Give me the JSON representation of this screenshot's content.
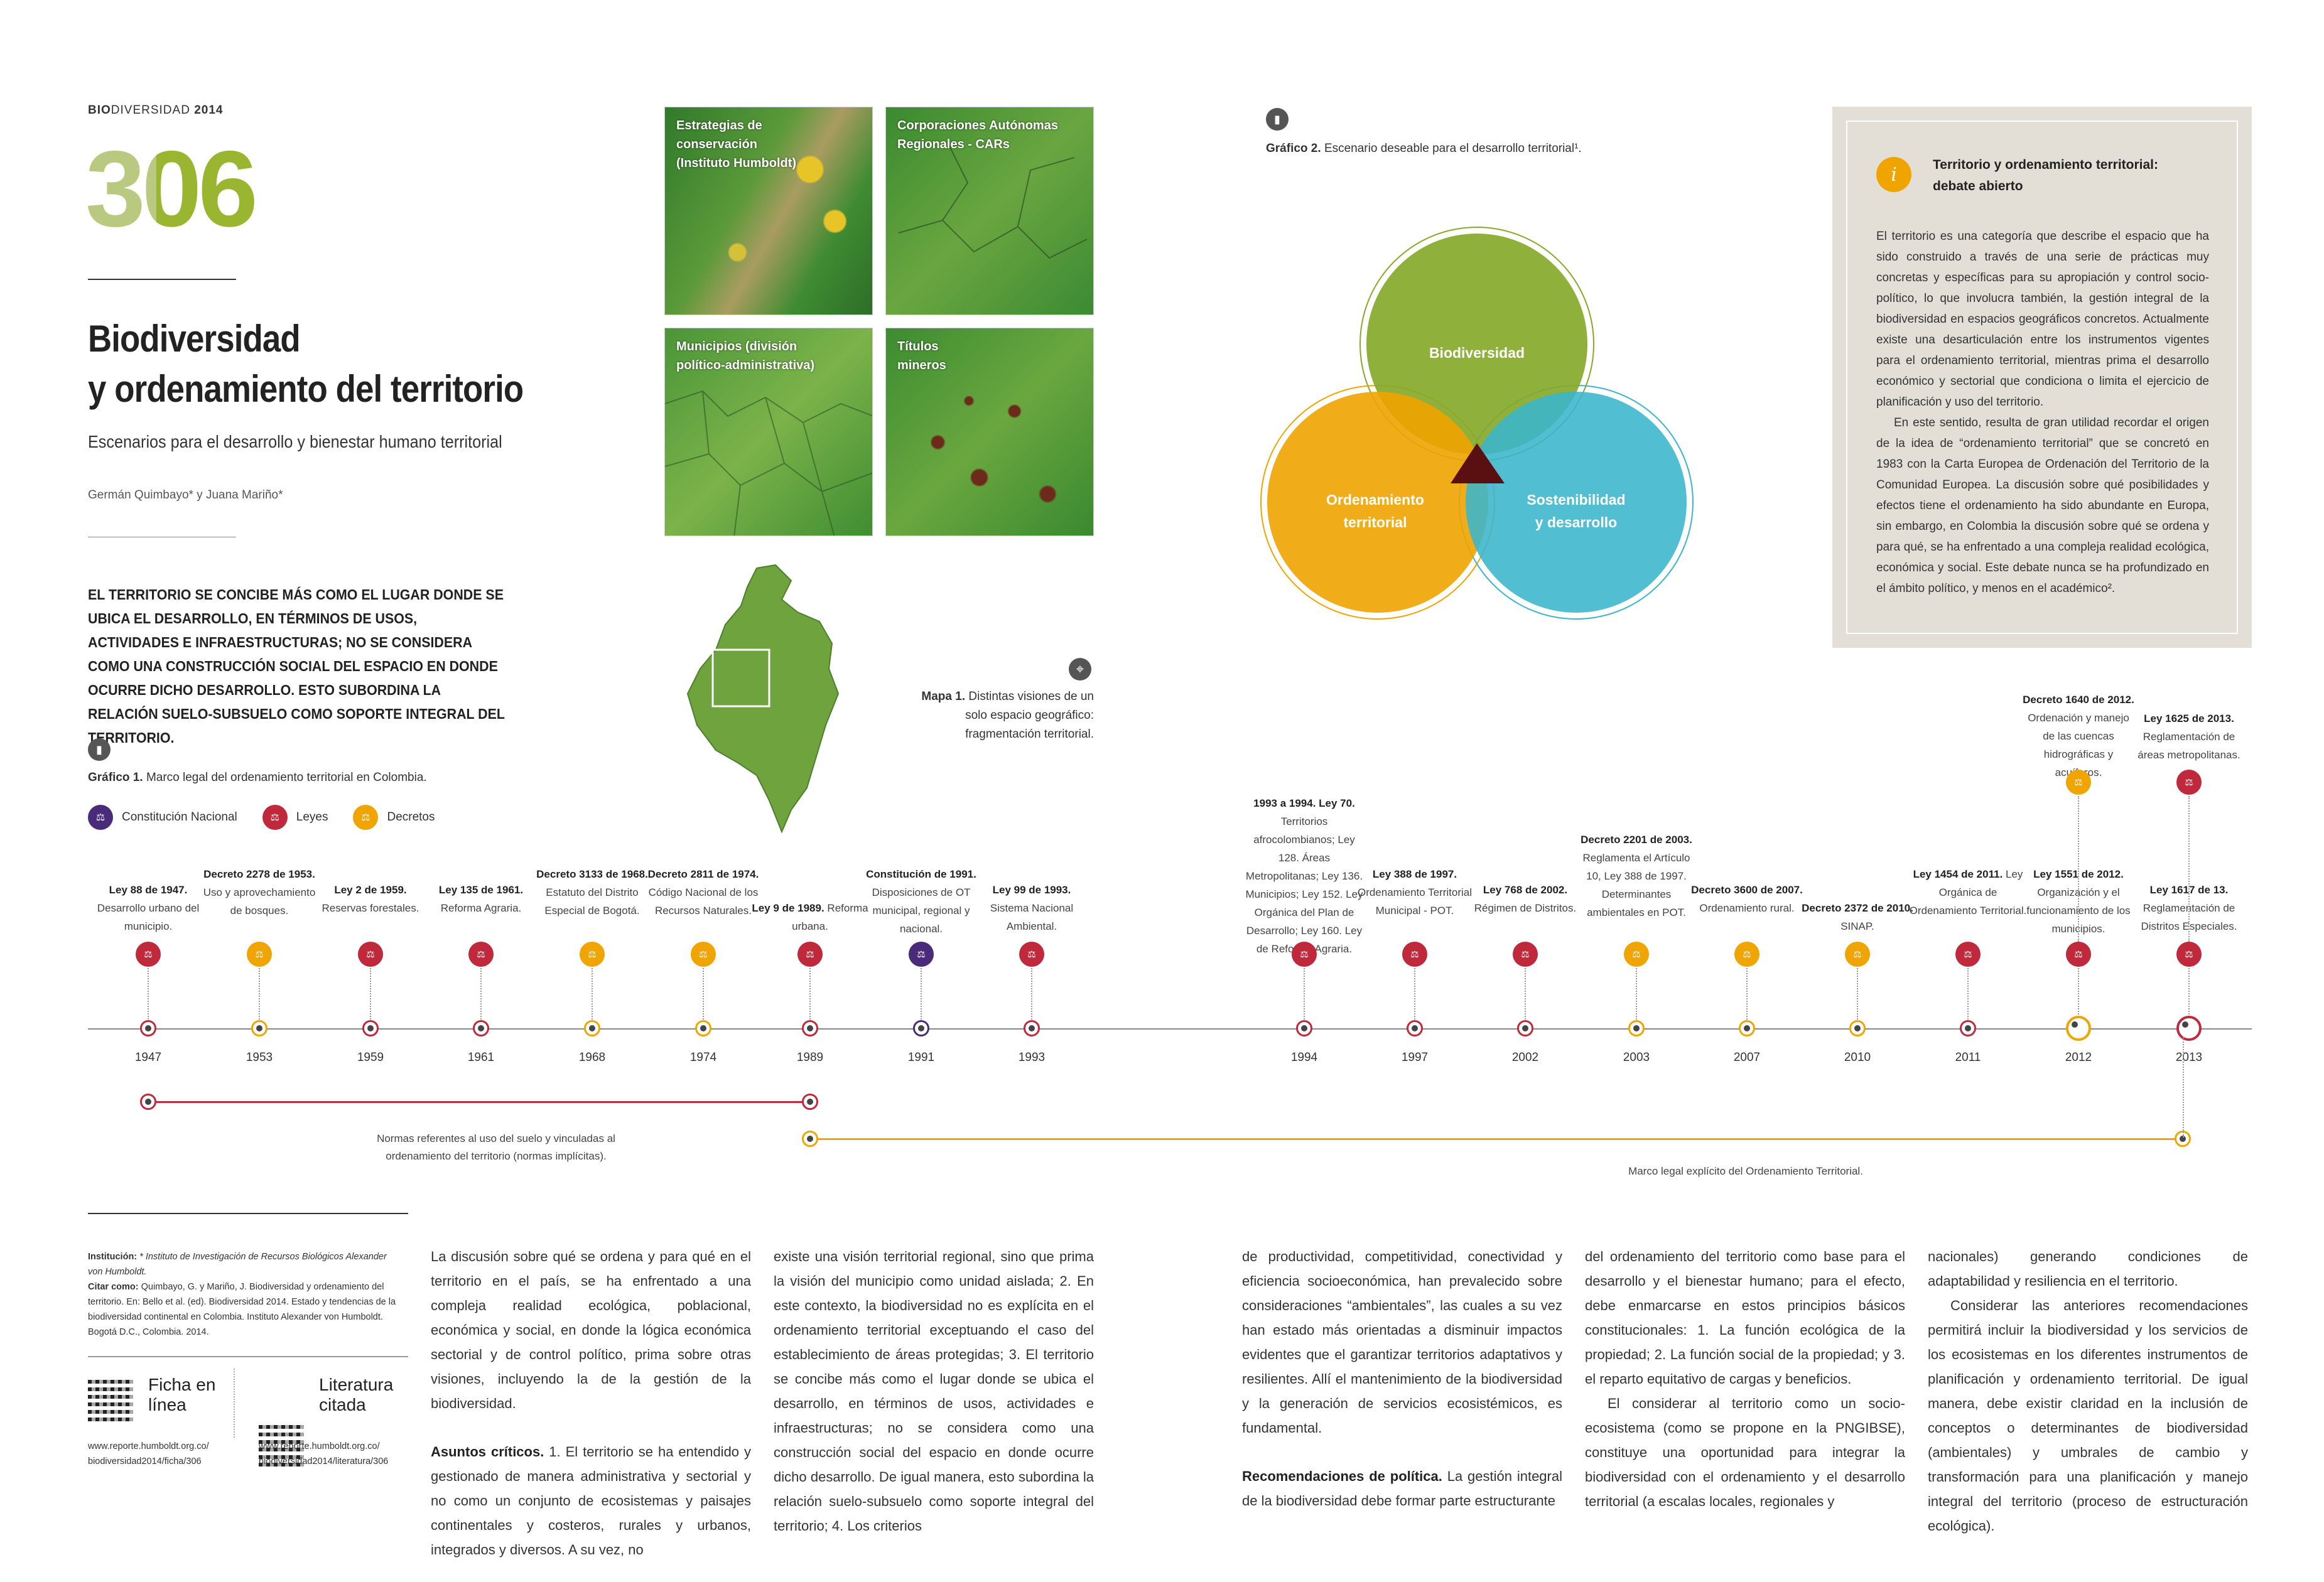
{
  "header": {
    "bio": "BIO",
    "rest": "DIVERSIDAD",
    "year": "2014"
  },
  "page_number": "306",
  "title_line1": "Biodiversidad",
  "title_line2": "y ordenamiento del territorio",
  "subtitle": "Escenarios para el desarrollo y bienestar humano territorial",
  "authors": "Germán Quimbayo* y Juana Mariño*",
  "lead": "El territorio se concibe más como el lugar donde se ubica el desarrollo, en términos de usos, actividades e infraestructuras; no se considera como una construcción social del espacio en donde ocurre dicho desarrollo. Esto subordina la relación suelo-subsuelo como soporte integral del territorio.",
  "maps": {
    "tiles": [
      {
        "label": "Estrategias de conservación (Instituto Humboldt)"
      },
      {
        "label": "Corporaciones Autónomas Regionales - CARs"
      },
      {
        "label": "Municipios (división político-administrativa)"
      },
      {
        "label": "Títulos mineros"
      }
    ],
    "caption_bold": "Mapa 1.",
    "caption_text": "Distintas visiones de un solo espacio geográfico: fragmentación territorial.",
    "icon": "location-pin-icon"
  },
  "grafico1": {
    "caption_bold": "Gráfico 1.",
    "caption_text": "Marco legal del ordenamiento territorial en Colombia.",
    "legend": [
      {
        "label": "Constitución Nacional",
        "color": "#4a2a7a"
      },
      {
        "label": "Leyes",
        "color": "#c0283c"
      },
      {
        "label": "Decretos",
        "color": "#f0a400"
      }
    ]
  },
  "grafico2": {
    "caption_bold": "Gráfico 2.",
    "caption_text": "Escenario deseable para el desarrollo territorial¹.",
    "circles": [
      {
        "label": "Biodiversidad",
        "color": "#86a92a"
      },
      {
        "label": "Ordenamiento territorial",
        "color": "#f0a400"
      },
      {
        "label": "Sostenibilidad y desarrollo",
        "color": "#3ab5cc"
      }
    ]
  },
  "timeline": {
    "events": [
      {
        "year": "1947",
        "type": "ley",
        "bold": "Ley 88 de 1947.",
        "text": "Desarrollo urbano del municipio."
      },
      {
        "year": "1953",
        "type": "decreto",
        "bold": "Decreto 2278 de 1953.",
        "text": "Uso y aprovechamiento de bosques."
      },
      {
        "year": "1959",
        "type": "ley",
        "bold": "Ley 2 de 1959.",
        "text": "Reservas forestales."
      },
      {
        "year": "1961",
        "type": "ley",
        "bold": "Ley 135 de 1961.",
        "text": "Reforma Agraria."
      },
      {
        "year": "1968",
        "type": "decreto",
        "bold": "Decreto 3133 de 1968.",
        "text": "Estatuto del Distrito Especial de Bogotá."
      },
      {
        "year": "1974",
        "type": "decreto",
        "bold": "Decreto 2811 de 1974.",
        "text": "Código Nacional de los Recursos Naturales."
      },
      {
        "year": "1989",
        "type": "ley",
        "bold": "Ley 9 de 1989.",
        "text": "Reforma urbana."
      },
      {
        "year": "1991",
        "type": "constitucion",
        "bold": "Constitución de 1991.",
        "text": "Disposiciones de OT municipal, regional y nacional."
      },
      {
        "year": "1993",
        "type": "ley",
        "bold": "Ley 99 de 1993.",
        "text": "Sistema Nacional Ambiental."
      },
      {
        "year": "1994",
        "type": "ley",
        "bold": "1993 a 1994. Ley 70.",
        "text": "Territorios afrocolombianos; Ley 128. Áreas Metropolitanas; Ley 136. Municipios; Ley 152. Ley Orgánica del Plan de Desarrollo; Ley 160. Ley de Reforma Agraria."
      },
      {
        "year": "1997",
        "type": "ley",
        "bold": "Ley 388 de 1997.",
        "text": "Ordenamiento Territorial Municipal - POT."
      },
      {
        "year": "2002",
        "type": "ley",
        "bold": "Ley 768 de 2002.",
        "text": "Régimen de Distritos."
      },
      {
        "year": "2003",
        "type": "decreto",
        "bold": "Decreto 2201 de 2003.",
        "text": "Reglamenta el Artículo 10, Ley 388 de 1997. Determinantes ambientales en POT."
      },
      {
        "year": "2007",
        "type": "decreto",
        "bold": "Decreto 3600 de 2007.",
        "text": "Ordenamiento rural."
      },
      {
        "year": "2010",
        "type": "decreto",
        "bold": "Decreto 2372 de 2010.",
        "text": "SINAP."
      },
      {
        "year": "2011",
        "type": "ley",
        "bold": "Ley 1454 de 2011.",
        "text": "Ley Orgánica de Ordenamiento Territorial."
      },
      {
        "year": "2012",
        "type": "ley",
        "bold": "Ley 1551 de 2012.",
        "text": "Organización y el funcionamiento de los municipios."
      },
      {
        "year": "2013",
        "type": "ley",
        "bold": "Ley 1617 de 13.",
        "text": "Reglamentación de Distritos Especiales."
      }
    ],
    "upper_events": [
      {
        "year": "2012",
        "type": "decreto",
        "bold": "Decreto 1640 de 2012.",
        "text": "Ordenación y manejo de las cuencas hidrográficas y acuíferos."
      },
      {
        "year": "2013",
        "type": "ley",
        "bold": "Ley 1625 de 2013.",
        "text": "Reglamentación de áreas metropolitanas."
      }
    ],
    "range1_label": "Normas referentes al uso del suelo y vinculadas al ordenamiento del territorio (normas implícitas).",
    "range2_label": "Marco legal explícito del Ordenamiento Territorial."
  },
  "sidebox": {
    "title": "Territorio y ordenamiento territorial: debate abierto",
    "icon": "info-icon",
    "p1": "El territorio es una categoría que describe el espacio que ha sido construido a través de una serie de prácticas muy concretas y específicas para su apropiación y control socio-político, lo que involucra también, la gestión integral de la biodiversidad en espacios geográficos concretos. Actualmente existe una desarticulación entre los instrumentos vigentes para el ordenamiento territorial, mientras prima el desarrollo económico y sectorial que condiciona o limita el ejercicio de planificación y uso del territorio.",
    "p2": "En este sentido, resulta de gran utilidad recordar el origen de la idea de “ordenamiento territorial” que se concretó en 1983 con la Carta Europea de Ordenación del Territorio de la Comunidad Europea. La discusión sobre qué posibilidades y efectos tiene el ordenamiento ha sido abundante en Europa, sin embargo, en Colombia la discusión sobre qué se ordena y para qué, se ha enfrentado a una compleja realidad ecológica, económica y social. Este debate nunca se ha profundizado en el ámbito político, y menos en el académico²."
  },
  "footer": {
    "institucion_bold": "Institución:",
    "institucion_text": "* Instituto de Investigación de Recursos Biológicos Alexander von Humboldt.",
    "citar_bold": "Citar como:",
    "citar_text": "Quimbayo, G. y Mariño, J. Biodiversidad y ordenamiento del territorio. En: Bello et al. (ed). Biodiversidad 2014. Estado y tendencias de la biodiversidad continental en Colombia. Instituto Alexander von Humboldt. Bogotá D.C., Colombia. 2014.",
    "ficha_label": "Ficha en línea",
    "ficha_url": "www.reporte.humboldt.org.co/ biodiversidad2014/ficha/306",
    "lit_label": "Literatura citada",
    "lit_url": "www.reporte.humboldt.org.co/ biodiversidad2014/literatura/306"
  },
  "body": {
    "col1_p1": "La discusión sobre qué se ordena y para qué en el territorio en el país, se ha enfrentado a una compleja realidad ecológica, poblacional, económica y social, en donde la lógica económica sectorial y de control político, prima sobre otras visiones, incluyendo la de la gestión de la biodiversidad.",
    "col1_h": "Asuntos críticos.",
    "col1_p2": "1. El territorio se ha entendido y gestionado de manera administrativa y sectorial y no como un conjunto de ecosistemas y paisajes continentales y costeros, rurales y urbanos, integrados y diversos. A su vez, no",
    "col2": "existe una visión territorial regional, sino que prima la visión del municipio como unidad aislada; 2. En este contexto, la biodiversidad no es explícita en el ordenamiento territorial exceptuando el caso del establecimiento de áreas protegidas; 3. El territorio se concibe más como el lugar donde se ubica el desarrollo, en términos de usos, actividades e infraestructuras; no se considera como una construcción social del espacio en donde ocurre dicho desarrollo. De igual manera, esto subordina la relación suelo-subsuelo como soporte integral del territorio; 4. Los criterios",
    "col3_p1": "de productividad, competitividad, conectividad y eficiencia socioeconómica, han prevalecido sobre consideraciones “ambientales”, las cuales a su vez han estado más orientadas a disminuir impactos evidentes que el garantizar territorios adaptativos y resilientes. Allí el mantenimiento de la biodiversidad y la generación de servicios ecosistémicos, es fundamental.",
    "col3_h": "Recomendaciones de política.",
    "col3_p2": "La gestión integral de la biodiversidad debe formar parte estructurante",
    "col4_p1": "del ordenamiento del territorio como base para el desarrollo y el bienestar humano; para el efecto, debe enmarcarse en estos principios básicos constitucionales: 1. La función ecológica de la propiedad; 2. La función social de la propiedad; y 3. el reparto equitativo de cargas y beneficios.",
    "col4_p2": "El considerar al territorio como un socio-ecosistema (como se propone en la PNGIBSE), constituye una oportunidad para integrar la biodiversidad con el ordenamiento y el desarrollo territorial (a escalas locales, regionales y",
    "col5_p1": "nacionales) generando condiciones de adaptabilidad y resiliencia en el territorio.",
    "col5_p2": "Considerar las anteriores recomendaciones permitirá incluir la biodiversidad y los servicios de los ecosistemas en los diferentes instrumentos de planificación y ordenamiento territorial. De igual manera, debe existir claridad en la inclusión de conceptos o determinantes de biodiversidad (ambientales) y umbrales de cambio y transformación para una planificación y manejo integral del territorio (proceso de estructuración ecológica)."
  }
}
